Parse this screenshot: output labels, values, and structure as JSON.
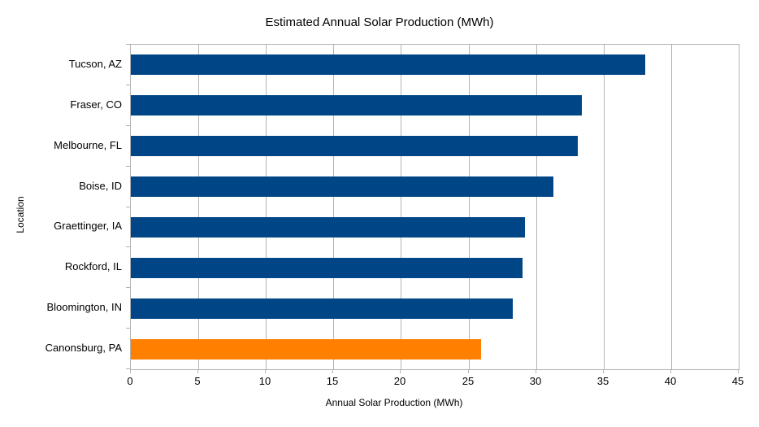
{
  "title": "Estimated Annual Solar Production (MWh)",
  "colors": {
    "default_bar": "#004586",
    "highlight_bar": "#FF8000",
    "grid": "#b3b3b3",
    "text": "#000000",
    "background": "#ffffff"
  },
  "chart_data": {
    "type": "bar",
    "orientation": "horizontal",
    "title": "Estimated Annual Solar Production (MWh)",
    "xlabel": "Annual Solar Production (MWh)",
    "ylabel": "Location",
    "categories": [
      "Tucson, AZ",
      "Fraser, CO",
      "Melbourne, FL",
      "Boise, ID",
      "Graettinger, IA",
      "Rockford, IL",
      "Bloomington, IN",
      "Canonsburg, PA"
    ],
    "values": [
      38.1,
      33.4,
      33.1,
      31.3,
      29.2,
      29.0,
      28.3,
      25.9
    ],
    "bar_colors": [
      "#004586",
      "#004586",
      "#004586",
      "#004586",
      "#004586",
      "#004586",
      "#004586",
      "#FF8000"
    ],
    "xlim": [
      0,
      45
    ],
    "xticks": [
      0,
      5,
      10,
      15,
      20,
      25,
      30,
      35,
      40,
      45
    ],
    "grid": "vertical-only",
    "legend": "none"
  }
}
